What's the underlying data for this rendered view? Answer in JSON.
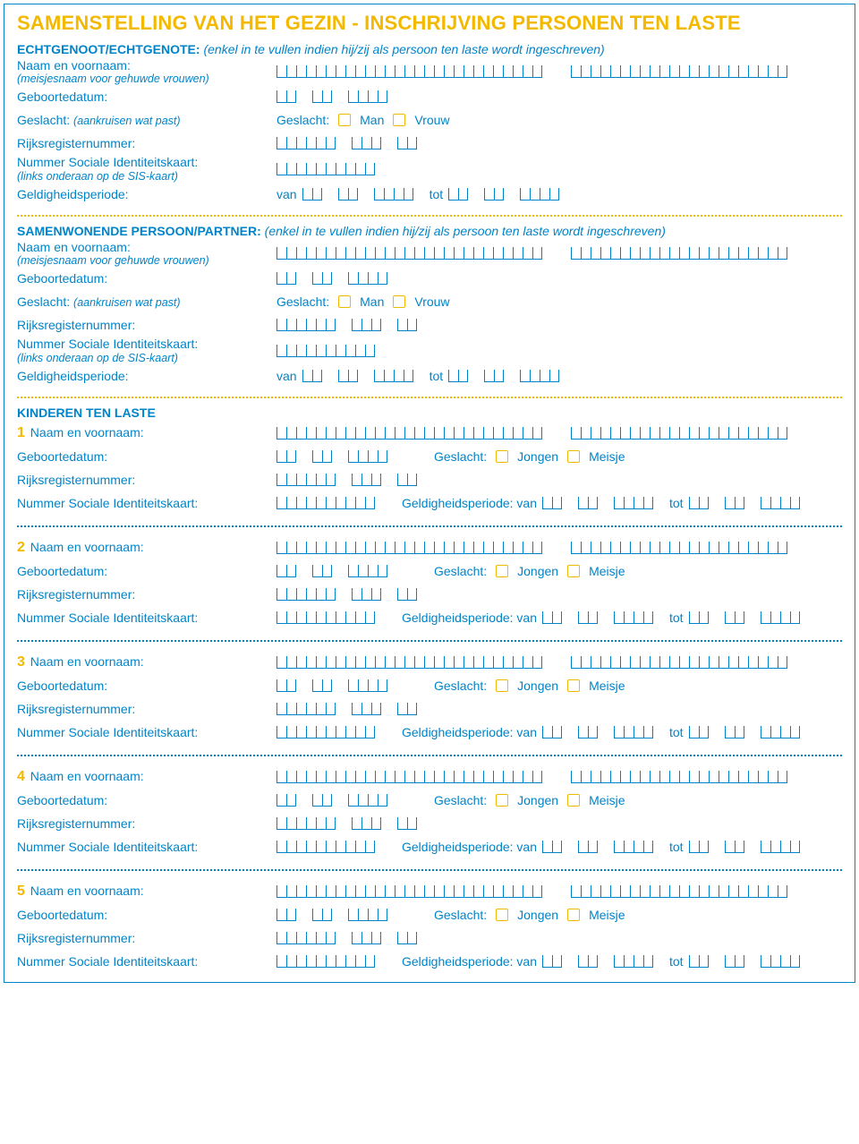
{
  "colors": {
    "primary": "#0084c9",
    "accent": "#f3b800",
    "background": "#ffffff"
  },
  "title": "SAMENSTELLING VAN HET GEZIN - INSCHRIJVING PERSONEN TEN LASTE",
  "spouse": {
    "heading": "ECHTGENOOT/ECHTGENOTE:",
    "heading_note": "(enkel in te vullen indien hij/zij als persoon ten laste wordt ingeschreven)",
    "name_label": "Naam en voornaam:",
    "name_sub": "(meisjesnaam voor gehuwde vrouwen)",
    "dob_label": "Geboortedatum:",
    "sex_label": "Geslacht:",
    "sex_label_note": "(aankruisen wat past)",
    "sex_prefix": "Geslacht:",
    "sex_m": "Man",
    "sex_f": "Vrouw",
    "rrn_label": "Rijksregisternummer:",
    "sis_label": "Nummer Sociale Identiteitskaart:",
    "sis_sub": "(links onderaan op de SIS-kaart)",
    "valid_label": "Geldigheidsperiode:",
    "van": "van",
    "tot": "tot"
  },
  "partner": {
    "heading": "SAMENWONENDE PERSOON/PARTNER:",
    "heading_note": "(enkel in te vullen indien hij/zij als persoon ten laste wordt ingeschreven)"
  },
  "children_heading": "KINDEREN TEN LASTE",
  "child": {
    "name_label": "Naam en voornaam:",
    "dob_label": "Geboortedatum:",
    "sex_prefix": "Geslacht:",
    "sex_b": "Jongen",
    "sex_g": "Meisje",
    "rrn_label": "Rijksregisternummer:",
    "sis_label": "Nummer Sociale Identiteitskaart:",
    "valid_prefix": "Geldigheidsperiode: van",
    "tot": "tot"
  },
  "child_numbers": [
    "1",
    "2",
    "3",
    "4",
    "5"
  ],
  "box_layouts": {
    "name1": 27,
    "name2": 22,
    "date": [
      2,
      2,
      4
    ],
    "rrn": [
      6,
      3,
      2
    ],
    "sis": [
      10
    ],
    "child_sis": [
      10
    ]
  }
}
